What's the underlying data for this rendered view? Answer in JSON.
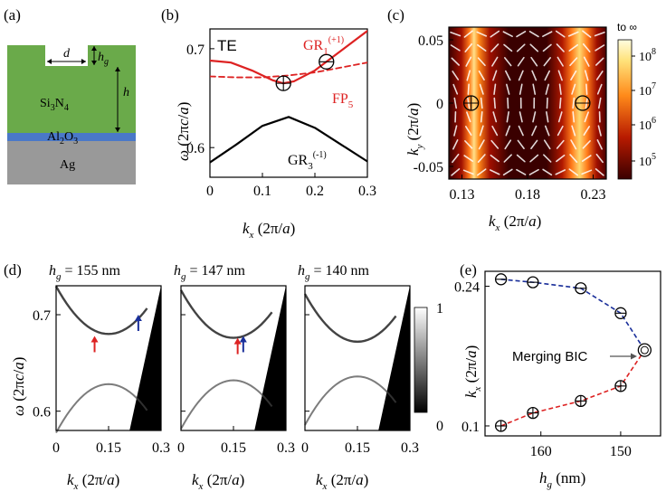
{
  "panel_labels": {
    "a": "(a)",
    "b": "(b)",
    "c": "(c)",
    "d": "(d)",
    "e": "(e)"
  },
  "colors": {
    "green": "#6aaa4a",
    "blue": "#4a78c8",
    "gray": "#999999",
    "red": "#dd2222",
    "black": "#000000",
    "navy": "#1a2f9a"
  },
  "panel_a": {
    "layers": {
      "si3n4": "Si3N4",
      "al2o3": "Al2O3",
      "ag": "Ag"
    },
    "dims": {
      "d": "d",
      "hg": "hg",
      "h": "h"
    }
  },
  "panel_b": {
    "mode_label": "TE",
    "xlabel": "kx (2π/a)",
    "ylabel": "ω (2πc/a)",
    "xticks": [
      "0",
      "0.1",
      "0.2",
      "0.3"
    ],
    "yticks": [
      "0.6",
      "0.7"
    ],
    "labels": {
      "gr1": "GR1(+1)",
      "fp5": "FP5",
      "gr3": "GR3(-1)"
    }
  },
  "panel_c": {
    "xlabel": "kx (2π/a)",
    "ylabel": "ky (2π/a)",
    "xticks": [
      "0.13",
      "0.18",
      "0.23"
    ],
    "yticks": [
      "0.05",
      "0",
      "-0.05"
    ],
    "colorbar_top": "to ∞",
    "colorbar_ticks": [
      "10^8",
      "10^7",
      "10^6",
      "10^5"
    ]
  },
  "panel_d": {
    "titles": [
      "hg = 155 nm",
      "hg = 147 nm",
      "hg = 140 nm"
    ],
    "xlabel": "kx (2π/a)",
    "ylabel": "ω (2πc/a)",
    "xticks": [
      "0",
      "0.15",
      "0.3"
    ],
    "yticks": [
      "0.7",
      "0.6"
    ],
    "colorbar_ticks": [
      "1",
      "0"
    ]
  },
  "panel_e": {
    "xlabel": "hg (nm)",
    "ylabel": "kx (2π/a)",
    "xticks": [
      "160",
      "150"
    ],
    "yticks": [
      "0.24",
      "0.1"
    ],
    "annotation": "Merging BIC"
  },
  "chart_data": [
    {
      "type": "line",
      "panel": "b",
      "xlim": [
        0,
        0.3
      ],
      "ylim": [
        0.57,
        0.72
      ],
      "series": [
        {
          "name": "GR1(+1)",
          "x": [
            0,
            0.04,
            0.08,
            0.12,
            0.14,
            0.16,
            0.2,
            0.24,
            0.28,
            0.3
          ],
          "values": [
            0.688,
            0.686,
            0.678,
            0.668,
            0.665,
            0.667,
            0.678,
            0.694,
            0.71,
            0.718
          ]
        },
        {
          "name": "FP5",
          "x": [
            0,
            0.05,
            0.1,
            0.15,
            0.2,
            0.25,
            0.3
          ],
          "values": [
            0.672,
            0.671,
            0.671,
            0.673,
            0.676,
            0.681,
            0.686
          ]
        },
        {
          "name": "GR3(-1)",
          "x": [
            0,
            0.05,
            0.1,
            0.15,
            0.2,
            0.25,
            0.3
          ],
          "values": [
            0.585,
            0.603,
            0.622,
            0.631,
            0.62,
            0.603,
            0.586
          ]
        }
      ],
      "markers_x": [
        0.14,
        0.222
      ]
    },
    {
      "type": "heatmap",
      "panel": "c",
      "xlim": [
        0.12,
        0.24
      ],
      "ylim": [
        -0.06,
        0.06
      ],
      "markers_x": [
        0.137,
        0.222
      ]
    },
    {
      "type": "scatter",
      "panel": "e",
      "x_label": "hg (nm)",
      "series": [
        {
          "name": "upper",
          "x": [
            165,
            161,
            155,
            150
          ],
          "values": [
            0.247,
            0.244,
            0.238,
            0.213
          ]
        },
        {
          "name": "lower",
          "x": [
            165,
            161,
            155,
            150
          ],
          "values": [
            0.1,
            0.113,
            0.125,
            0.14
          ]
        },
        {
          "name": "merging",
          "x": [
            147
          ],
          "values": [
            0.176
          ]
        }
      ],
      "xlim": [
        167,
        145
      ],
      "ylim": [
        0.09,
        0.255
      ]
    }
  ]
}
